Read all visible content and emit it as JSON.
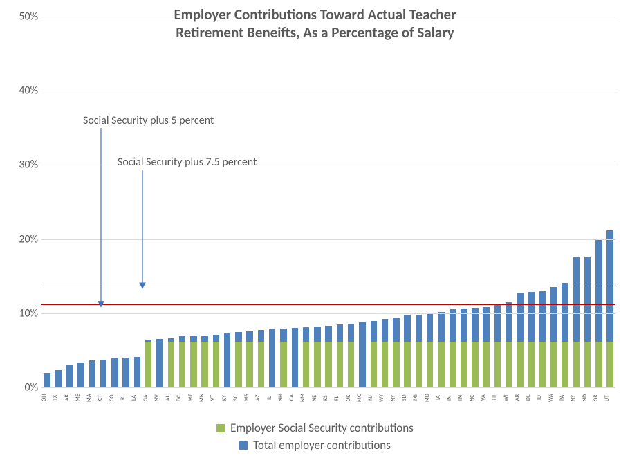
{
  "title_line1": "Employer Contributions Toward Actual Teacher",
  "title_line2": "Retirement Beneifts, As a Percentage of Salary",
  "title_fontsize": 21,
  "title_color": "#595959",
  "axis_fontsize": 16,
  "xlabel_fontsize": 8,
  "legend_fontsize": 17,
  "text_color": "#595959",
  "background_color": "#ffffff",
  "gridline_color": "#d9d9d9",
  "refline_color": "#c00000",
  "arrow_color": "#4472c4",
  "colors": {
    "social_security": "#9bbb59",
    "total": "#4f81bd"
  },
  "ylim": [
    0,
    50
  ],
  "yticks": [
    0,
    10,
    20,
    30,
    40,
    50
  ],
  "ytick_labels": [
    "0%",
    "10%",
    "20%",
    "30%",
    "40%",
    "50%"
  ],
  "reference_lines": [
    {
      "value": 11.2,
      "label": "Social Security plus 5 percent"
    },
    {
      "value": 13.7,
      "label": "Social Security plus 7.5 percent"
    }
  ],
  "annotations": {
    "ss5_label": "Social Security plus 5 percent",
    "ss75_label": "Social Security plus 7.5 percent"
  },
  "legend": {
    "social_security": "Employer Social Security contributions",
    "total": "Total employer contributions"
  },
  "type": "stacked-bar",
  "bar_width": 0.58,
  "states": [
    "OH",
    "TX",
    "AK",
    "ME",
    "MA",
    "CT",
    "CO",
    "RI",
    "LA",
    "GA",
    "NV",
    "AL",
    "DC",
    "MT",
    "MN",
    "VT",
    "KY",
    "SC",
    "MS",
    "AZ",
    "IL",
    "NH",
    "CA",
    "NM",
    "NE",
    "KS",
    "FL",
    "OK",
    "MO",
    "NJ",
    "WY",
    "NY",
    "SD",
    "MI",
    "MD",
    "IA",
    "IN",
    "TN",
    "NC",
    "VA",
    "HI",
    "WI",
    "AR",
    "DE",
    "ID",
    "WA",
    "PA",
    "NY",
    "ND",
    "OR",
    "UT"
  ],
  "social_security_values": [
    0,
    0,
    0,
    0,
    0,
    0,
    0,
    0,
    0,
    6.2,
    0,
    6.2,
    6.2,
    6.2,
    6.2,
    6.2,
    0,
    6.2,
    6.2,
    6.2,
    0,
    6.2,
    0,
    6.2,
    6.2,
    6.2,
    6.2,
    6.2,
    0,
    6.2,
    6.2,
    6.2,
    6.2,
    6.2,
    6.2,
    6.2,
    6.2,
    6.2,
    6.2,
    6.2,
    6.2,
    6.2,
    6.2,
    6.2,
    6.2,
    6.2,
    6.2,
    6.2,
    6.2,
    6.2,
    6.2
  ],
  "top_values": [
    2.0,
    2.3,
    3.0,
    3.4,
    3.6,
    3.7,
    3.9,
    4.0,
    4.1,
    0.2,
    6.5,
    0.4,
    0.7,
    0.7,
    0.8,
    0.9,
    7.3,
    1.3,
    1.4,
    1.5,
    7.8,
    1.7,
    8.0,
    1.9,
    2.0,
    2.1,
    2.3,
    2.4,
    8.8,
    2.8,
    3.0,
    3.1,
    3.6,
    3.6,
    3.7,
    4.0,
    4.3,
    4.4,
    4.5,
    4.6,
    5.0,
    5.3,
    6.5,
    6.7,
    6.8,
    7.3,
    7.9,
    11.3,
    11.4,
    13.8,
    15.0
  ],
  "total_values": [
    2.0,
    2.3,
    3.0,
    3.4,
    3.6,
    3.7,
    3.9,
    4.0,
    4.1,
    6.4,
    6.5,
    6.6,
    6.9,
    6.9,
    7.0,
    7.1,
    7.3,
    7.5,
    7.6,
    7.7,
    7.8,
    7.9,
    8.0,
    8.1,
    8.2,
    8.3,
    8.5,
    8.6,
    8.8,
    9.0,
    9.2,
    9.3,
    9.8,
    9.8,
    9.9,
    10.2,
    10.5,
    10.6,
    10.7,
    10.8,
    11.2,
    11.5,
    12.7,
    12.9,
    13.0,
    13.5,
    14.1,
    17.5,
    17.6,
    20.0,
    21.2
  ]
}
